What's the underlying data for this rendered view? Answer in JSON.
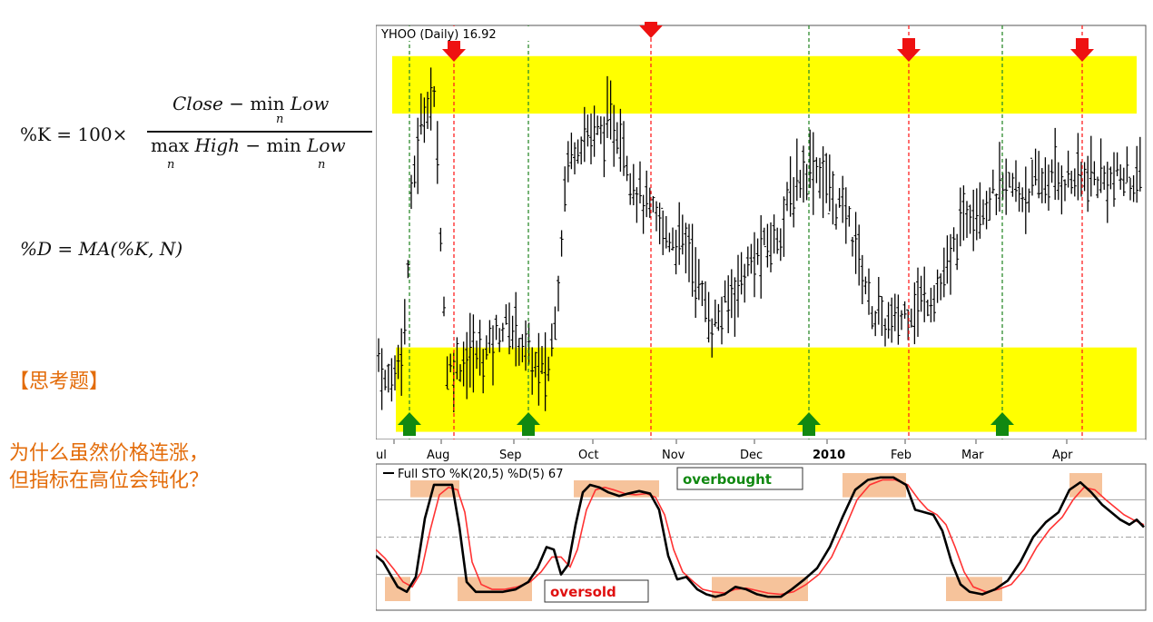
{
  "formulas": {
    "k_lhs": "%K = 100×",
    "k_num_a": "Close",
    "k_num_b": " − min ",
    "k_num_c": "Low",
    "k_num_sub": "n",
    "k_den_a": "max ",
    "k_den_b": "High",
    "k_den_c": " − min ",
    "k_den_d": "Low",
    "k_den_sub1": "n",
    "k_den_sub2": "n",
    "d_formula": "%D = MA(%K, N)"
  },
  "question": {
    "heading": "【思考题】",
    "line1": "为什么虽然价格连涨，",
    "line2": "但指标在高位会钝化？"
  },
  "colors": {
    "price_bar": "#000000",
    "band": "#ffff00",
    "k_line": "#000000",
    "d_line": "#ff3333",
    "buy_line": "#2e8b2e",
    "sell_line": "#ff2020",
    "zone": "#f5b98a",
    "grid": "#a0a0a0"
  },
  "chart_data": [
    {
      "type": "bar",
      "title": "YHOO (Daily) 16.92",
      "x_ticks": [
        "ul",
        "Aug",
        "Sep",
        "Oct",
        "Nov",
        "Dec",
        "2010",
        "Feb",
        "Mar",
        "Apr"
      ],
      "x_tick_pos": [
        0,
        52,
        132,
        219,
        311,
        397,
        477,
        563,
        641,
        741
      ],
      "ohlc_waypoints": [
        [
          0,
          14.2
        ],
        [
          10,
          13.6
        ],
        [
          22,
          13.8
        ],
        [
          32,
          14.4
        ],
        [
          40,
          16.2
        ],
        [
          50,
          17.0
        ],
        [
          58,
          17.4
        ],
        [
          66,
          17.2
        ],
        [
          78,
          13.8
        ],
        [
          90,
          13.9
        ],
        [
          105,
          14.0
        ],
        [
          118,
          14.0
        ],
        [
          130,
          14.2
        ],
        [
          140,
          14.4
        ],
        [
          155,
          14.3
        ],
        [
          168,
          14.0
        ],
        [
          178,
          13.8
        ],
        [
          190,
          13.8
        ],
        [
          200,
          14.8
        ],
        [
          210,
          16.5
        ],
        [
          222,
          16.8
        ],
        [
          234,
          16.9
        ],
        [
          248,
          16.9
        ],
        [
          260,
          17.0
        ],
        [
          270,
          16.9
        ],
        [
          282,
          16.3
        ],
        [
          294,
          16.0
        ],
        [
          306,
          15.8
        ],
        [
          318,
          15.6
        ],
        [
          332,
          15.5
        ],
        [
          346,
          15.4
        ],
        [
          358,
          14.8
        ],
        [
          370,
          14.4
        ],
        [
          380,
          14.5
        ],
        [
          392,
          14.8
        ],
        [
          402,
          15.0
        ],
        [
          414,
          15.2
        ],
        [
          430,
          15.4
        ],
        [
          444,
          15.6
        ],
        [
          458,
          16.1
        ],
        [
          470,
          16.4
        ],
        [
          482,
          16.5
        ],
        [
          494,
          16.3
        ],
        [
          506,
          16.0
        ],
        [
          520,
          15.8
        ],
        [
          534,
          15.2
        ],
        [
          546,
          14.6
        ],
        [
          560,
          14.4
        ],
        [
          572,
          14.4
        ],
        [
          586,
          14.6
        ],
        [
          600,
          14.7
        ],
        [
          614,
          14.8
        ],
        [
          628,
          15.0
        ],
        [
          642,
          15.6
        ],
        [
          656,
          16.0
        ],
        [
          670,
          16.0
        ],
        [
          684,
          16.1
        ],
        [
          698,
          16.2
        ],
        [
          712,
          16.1
        ],
        [
          726,
          16.2
        ],
        [
          740,
          16.3
        ]
      ],
      "overbought_band": [
        17.15,
        17.9
      ],
      "oversold_band": [
        13.0,
        14.1
      ],
      "buy_signals_x": [
        37,
        168,
        477,
        690
      ],
      "sell_signals_x": [
        86,
        303,
        587,
        778
      ],
      "y_range": [
        12.9,
        18.3
      ]
    },
    {
      "type": "line",
      "title": "Full STO %K(20,5) %D(5) 67",
      "series": [
        {
          "name": "%K",
          "points": [
            [
              0,
              35
            ],
            [
              8,
              30
            ],
            [
              16,
              20
            ],
            [
              24,
              10
            ],
            [
              34,
              6
            ],
            [
              44,
              18
            ],
            [
              54,
              65
            ],
            [
              64,
              92
            ],
            [
              74,
              92
            ],
            [
              84,
              92
            ],
            [
              92,
              58
            ],
            [
              100,
              14
            ],
            [
              110,
              6
            ],
            [
              124,
              6
            ],
            [
              140,
              6
            ],
            [
              154,
              8
            ],
            [
              168,
              14
            ],
            [
              178,
              25
            ],
            [
              188,
              42
            ],
            [
              196,
              40
            ],
            [
              204,
              20
            ],
            [
              212,
              28
            ],
            [
              220,
              60
            ],
            [
              228,
              86
            ],
            [
              236,
              92
            ],
            [
              246,
              90
            ],
            [
              256,
              86
            ],
            [
              268,
              83
            ],
            [
              278,
              85
            ],
            [
              290,
              87
            ],
            [
              302,
              85
            ],
            [
              312,
              72
            ],
            [
              322,
              35
            ],
            [
              332,
              16
            ],
            [
              342,
              18
            ],
            [
              354,
              8
            ],
            [
              364,
              4
            ],
            [
              374,
              2
            ],
            [
              384,
              4
            ],
            [
              396,
              10
            ],
            [
              408,
              8
            ],
            [
              420,
              4
            ],
            [
              432,
              2
            ],
            [
              446,
              2
            ],
            [
              458,
              8
            ],
            [
              472,
              16
            ],
            [
              486,
              25
            ],
            [
              500,
              42
            ],
            [
              514,
              66
            ],
            [
              528,
              88
            ],
            [
              542,
              96
            ],
            [
              556,
              98
            ],
            [
              570,
              98
            ],
            [
              584,
              92
            ],
            [
              594,
              72
            ],
            [
              604,
              70
            ],
            [
              614,
              68
            ],
            [
              624,
              55
            ],
            [
              634,
              30
            ],
            [
              644,
              12
            ],
            [
              654,
              6
            ],
            [
              668,
              4
            ],
            [
              682,
              8
            ],
            [
              696,
              15
            ],
            [
              710,
              30
            ],
            [
              724,
              50
            ],
            [
              738,
              62
            ],
            [
              752,
              70
            ],
            [
              764,
              88
            ],
            [
              776,
              94
            ],
            [
              788,
              86
            ],
            [
              800,
              76
            ],
            [
              810,
              70
            ],
            [
              820,
              64
            ],
            [
              830,
              60
            ],
            [
              838,
              64
            ],
            [
              846,
              58
            ]
          ]
        },
        {
          "name": "%D",
          "points": [
            [
              0,
              40
            ],
            [
              10,
              33
            ],
            [
              20,
              24
            ],
            [
              30,
              14
            ],
            [
              40,
              10
            ],
            [
              50,
              22
            ],
            [
              60,
              56
            ],
            [
              70,
              84
            ],
            [
              80,
              90
            ],
            [
              90,
              88
            ],
            [
              98,
              70
            ],
            [
              106,
              30
            ],
            [
              116,
              12
            ],
            [
              128,
              8
            ],
            [
              142,
              8
            ],
            [
              156,
              10
            ],
            [
              170,
              14
            ],
            [
              182,
              22
            ],
            [
              194,
              34
            ],
            [
              204,
              34
            ],
            [
              214,
              26
            ],
            [
              222,
              40
            ],
            [
              232,
              72
            ],
            [
              242,
              88
            ],
            [
              252,
              90
            ],
            [
              262,
              88
            ],
            [
              274,
              85
            ],
            [
              286,
              84
            ],
            [
              298,
              85
            ],
            [
              308,
              82
            ],
            [
              318,
              68
            ],
            [
              328,
              40
            ],
            [
              338,
              22
            ],
            [
              350,
              14
            ],
            [
              360,
              8
            ],
            [
              372,
              6
            ],
            [
              384,
              5
            ],
            [
              396,
              8
            ],
            [
              408,
              9
            ],
            [
              420,
              7
            ],
            [
              432,
              5
            ],
            [
              446,
              4
            ],
            [
              460,
              6
            ],
            [
              474,
              12
            ],
            [
              488,
              20
            ],
            [
              502,
              34
            ],
            [
              516,
              56
            ],
            [
              530,
              80
            ],
            [
              544,
              92
            ],
            [
              558,
              96
            ],
            [
              572,
              96
            ],
            [
              586,
              92
            ],
            [
              598,
              80
            ],
            [
              608,
              72
            ],
            [
              618,
              68
            ],
            [
              628,
              60
            ],
            [
              638,
              42
            ],
            [
              648,
              22
            ],
            [
              658,
              10
            ],
            [
              672,
              6
            ],
            [
              686,
              8
            ],
            [
              700,
              12
            ],
            [
              714,
              24
            ],
            [
              728,
              42
            ],
            [
              742,
              56
            ],
            [
              756,
              66
            ],
            [
              768,
              80
            ],
            [
              780,
              90
            ],
            [
              792,
              88
            ],
            [
              804,
              80
            ],
            [
              814,
              74
            ],
            [
              824,
              68
            ],
            [
              834,
              64
            ],
            [
              846,
              60
            ]
          ]
        }
      ],
      "ylim": [
        0,
        100
      ],
      "gridlines": [
        20,
        50,
        80
      ],
      "overbought_zones": [
        [
          38,
          92
        ],
        [
          218,
          312
        ],
        [
          514,
          584
        ],
        [
          764,
          800
        ]
      ],
      "oversold_zones": [
        [
          10,
          38
        ],
        [
          90,
          172
        ],
        [
          370,
          476
        ],
        [
          628,
          690
        ]
      ],
      "labels": {
        "overbought": "overbought",
        "oversold": "oversold"
      }
    }
  ]
}
